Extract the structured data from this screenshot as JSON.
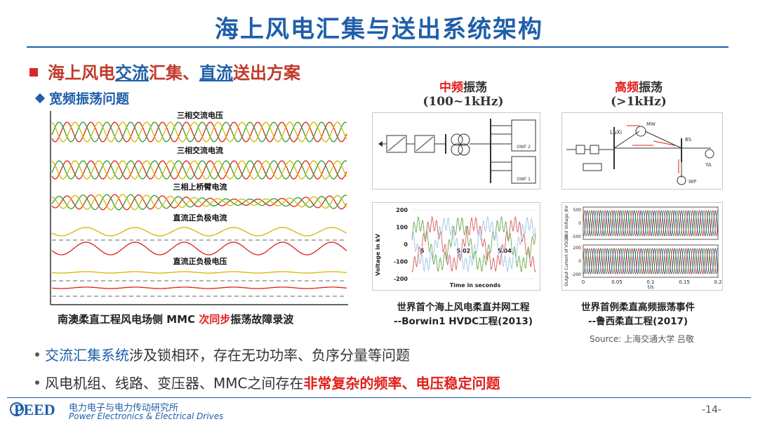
{
  "slide": {
    "title": "海上风电汇集与送出系统架构",
    "heading": {
      "part1": "海上风电",
      "part2": "交流",
      "part3": "汇集、",
      "part4": "直流",
      "part5": "送出方案"
    },
    "subheading": "宽频振荡问题"
  },
  "waveform": {
    "labels": [
      "三相交流电压",
      "三相交流电流",
      "三相上桥臂电流",
      "直流正负极电流",
      "直流正负极电压"
    ],
    "caption": {
      "part1": "南澳柔直工程风电场侧 MMC ",
      "part2": "次同步",
      "part3": "振荡故障录波"
    }
  },
  "mid_freq": {
    "title_red": "中频",
    "title_rest": "振荡",
    "range": "(100~1kHz)",
    "diagram_labels": [
      "OWF 2",
      "OWF 1"
    ],
    "caption_line1": "世界首个海上风电柔直并网工程",
    "caption_line2": "--Borwin1 HVDC工程(2013)"
  },
  "high_freq": {
    "title_red": "高频",
    "title_rest": "振荡",
    "range": "(>1kHz)",
    "diagram_labels": [
      "LuXi",
      "MW",
      "BS",
      "YA",
      "WP"
    ],
    "caption_line1": "世界首例柔直高频振荡事件",
    "caption_line2": "--鲁西柔直工程(2017)"
  },
  "chart_data": [
    {
      "type": "line",
      "xlabel": "Time in seconds",
      "ylabel": "Voltage in kV",
      "x_ticks": [
        "5",
        "5.02",
        "5.04"
      ],
      "y_ticks": [
        "200",
        "100",
        "0",
        "-100",
        "-200"
      ],
      "xlim": [
        4.995,
        5.055
      ],
      "ylim": [
        -200,
        200
      ]
    },
    {
      "type": "line",
      "xlabel": "t/s",
      "ylabel_top": "Grid Voltage /kV",
      "ylabel_bottom": "Output Current of VSC/A",
      "x_ticks": [
        "0",
        "0.05",
        "0.1",
        "0.15",
        "0.2"
      ],
      "y_ticks_top": [
        "500",
        "0",
        "-500"
      ],
      "y_ticks_bottom": [
        "200",
        "0",
        "-200"
      ],
      "xlim": [
        0,
        0.2
      ]
    }
  ],
  "source": "Source: 上海交通大学 吕敬",
  "bullets": [
    {
      "hl": "交流汇集系统",
      "rest": "涉及锁相环，存在无功功率、负序分量等问题"
    },
    {
      "rest": "风电机组、线路、变压器、MMC之间存在",
      "hl": "非常复杂的频率、电压稳定问题"
    }
  ],
  "footer": {
    "logo_text": "PEED",
    "org_cn": "电力电子与电力传动研究所",
    "org_en": "Power Electronics & Electrical Drives",
    "page": "-14-"
  },
  "colors": {
    "title_blue": "#1f5fa8",
    "accent_red": "#e0201c"
  }
}
